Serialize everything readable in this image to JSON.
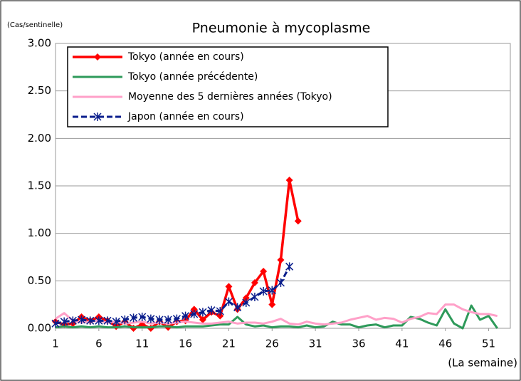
{
  "chart_data": {
    "type": "line",
    "title": "Pneumonie à mycoplasme",
    "y_label": "(Cas/sentinelle)",
    "x_label": "(La semaine)",
    "x": [
      1,
      2,
      3,
      4,
      5,
      6,
      7,
      8,
      9,
      10,
      11,
      12,
      13,
      14,
      15,
      16,
      17,
      18,
      19,
      20,
      21,
      22,
      23,
      24,
      25,
      26,
      27,
      28,
      29,
      30,
      31,
      32,
      33,
      34,
      35,
      36,
      37,
      38,
      39,
      40,
      41,
      42,
      43,
      44,
      45,
      46,
      47,
      48,
      49,
      50,
      51,
      52
    ],
    "xlim": [
      1,
      53.5
    ],
    "xticks": [
      1,
      6,
      11,
      16,
      21,
      26,
      31,
      36,
      41,
      46,
      51
    ],
    "ylim": [
      0,
      3
    ],
    "yticks": [
      {
        "value": 0,
        "label": "0.00"
      },
      {
        "value": 0.5,
        "label": "0.50"
      },
      {
        "value": 1,
        "label": "1.00"
      },
      {
        "value": 1.5,
        "label": "1.50"
      },
      {
        "value": 2,
        "label": "2.00"
      },
      {
        "value": 2.5,
        "label": "2.50"
      },
      {
        "value": 3,
        "label": "3.00"
      }
    ],
    "grid": true,
    "series": [
      {
        "name": "Tokyo (année en cours)",
        "color": "#ff0000",
        "marker": "diamond",
        "width": 3.5,
        "values": [
          0.07,
          0.04,
          0.05,
          0.12,
          0.08,
          0.12,
          0.08,
          0.02,
          0.07,
          0.0,
          0.04,
          0.0,
          0.07,
          0.01,
          0.07,
          0.08,
          0.2,
          0.09,
          0.17,
          0.13,
          0.44,
          0.2,
          0.32,
          0.48,
          0.6,
          0.25,
          0.72,
          1.56,
          1.13,
          null,
          null,
          null,
          null,
          null,
          null,
          null,
          null,
          null,
          null,
          null,
          null,
          null,
          null,
          null,
          null,
          null,
          null,
          null,
          null,
          null,
          null,
          null
        ]
      },
      {
        "name": "Tokyo (année précédente)",
        "color": "#2e9a5a",
        "width": 3,
        "values": [
          0.01,
          0.02,
          0.01,
          0.02,
          0.01,
          0.02,
          0.01,
          0.01,
          0.02,
          0.01,
          0.01,
          0.01,
          0.02,
          0.02,
          0.01,
          0.02,
          0.02,
          0.02,
          0.03,
          0.04,
          0.04,
          0.12,
          0.04,
          0.02,
          0.03,
          0.01,
          0.02,
          0.02,
          0.01,
          0.03,
          0.01,
          0.02,
          0.07,
          0.04,
          0.04,
          0.01,
          0.03,
          0.04,
          0.01,
          0.03,
          0.03,
          0.12,
          0.1,
          0.06,
          0.03,
          0.2,
          0.05,
          0.0,
          0.24,
          0.09,
          0.13,
          0.0
        ]
      },
      {
        "name": "Moyenne des 5 dernières années (Tokyo)",
        "color": "#ffa0c8",
        "width": 3,
        "values": [
          0.1,
          0.16,
          0.08,
          0.06,
          0.07,
          0.08,
          0.06,
          0.07,
          0.05,
          0.06,
          0.07,
          0.05,
          0.06,
          0.05,
          0.06,
          0.07,
          0.06,
          0.05,
          0.05,
          0.06,
          0.07,
          0.05,
          0.06,
          0.06,
          0.05,
          0.07,
          0.1,
          0.05,
          0.04,
          0.07,
          0.05,
          0.04,
          0.05,
          0.06,
          0.09,
          0.11,
          0.13,
          0.09,
          0.11,
          0.1,
          0.06,
          0.1,
          0.12,
          0.16,
          0.15,
          0.25,
          0.25,
          0.2,
          0.17,
          0.15,
          0.15,
          0.13
        ]
      },
      {
        "name": "Japon (année en cours)",
        "color": "#0a1e8c",
        "marker": "star",
        "dash": true,
        "width": 3,
        "values": [
          0.05,
          0.07,
          0.08,
          0.09,
          0.08,
          0.08,
          0.08,
          0.07,
          0.09,
          0.11,
          0.12,
          0.1,
          0.09,
          0.09,
          0.1,
          0.13,
          0.15,
          0.17,
          0.19,
          0.18,
          0.28,
          0.22,
          0.27,
          0.33,
          0.39,
          0.4,
          0.48,
          0.65,
          null,
          null,
          null,
          null,
          null,
          null,
          null,
          null,
          null,
          null,
          null,
          null,
          null,
          null,
          null,
          null,
          null,
          null,
          null,
          null,
          null,
          null,
          null,
          null
        ]
      }
    ]
  }
}
